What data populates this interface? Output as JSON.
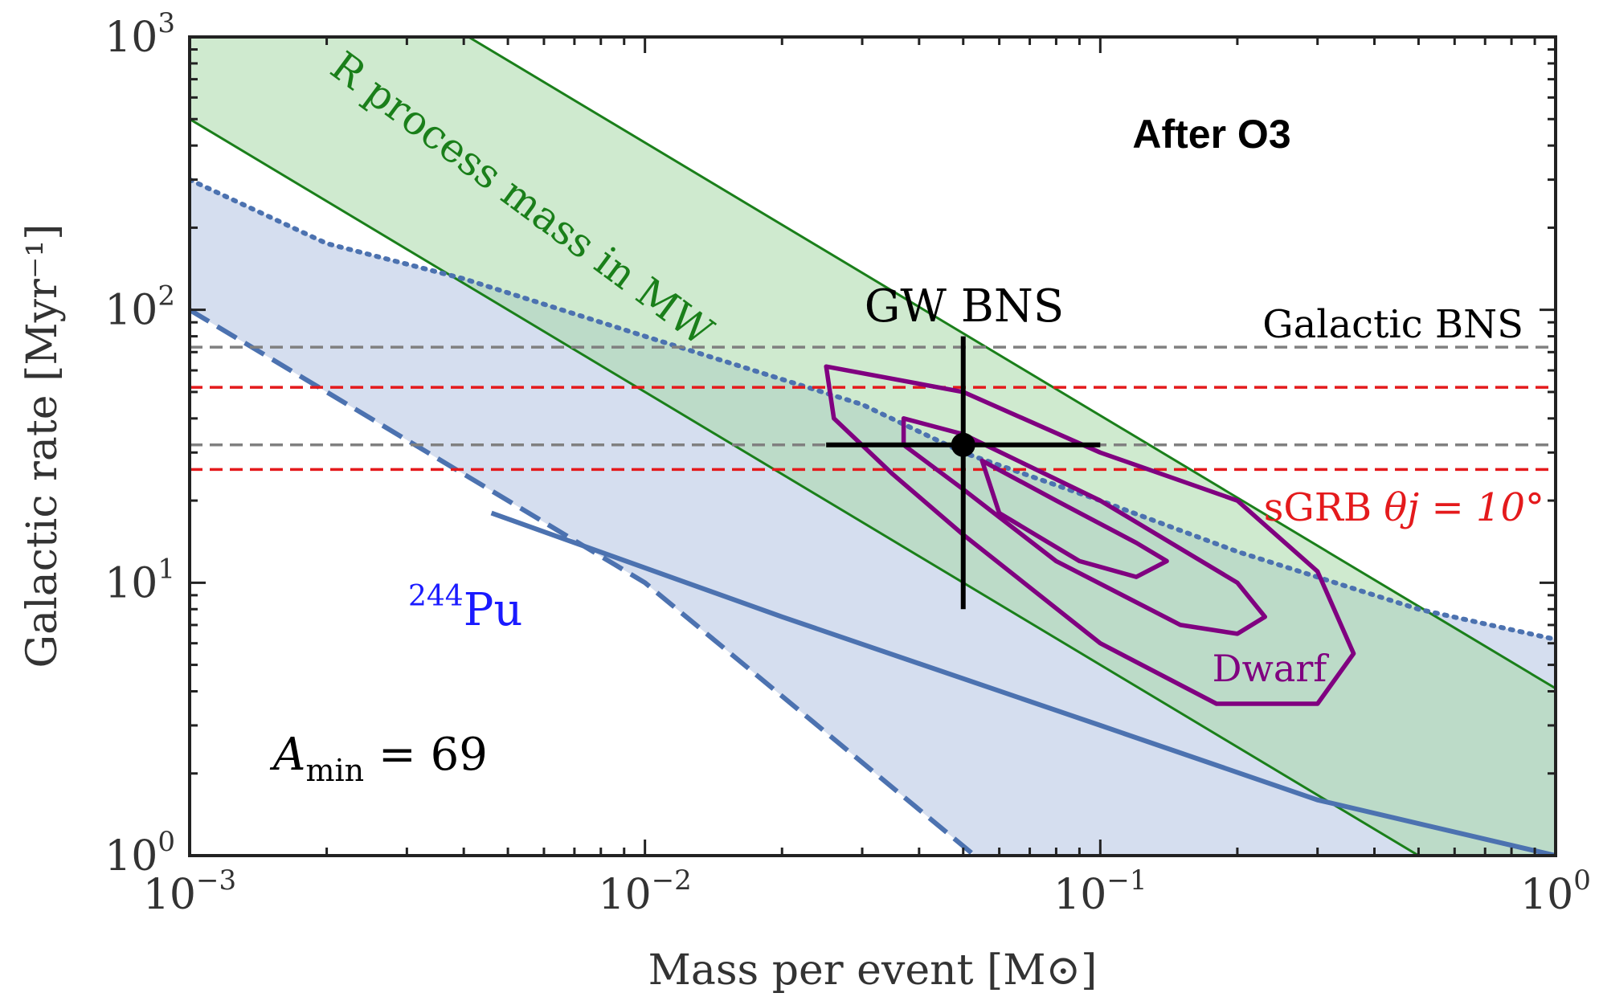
{
  "chart_data": {
    "type": "line",
    "title": "After O3",
    "xlabel": "Mass per event [M⊙]",
    "ylabel": "Galactic rate [Myr⁻¹]",
    "xscale": "log",
    "yscale": "log",
    "xlim": [
      0.001,
      1
    ],
    "ylim": [
      1,
      1000
    ],
    "x_ticks": [
      {
        "value": 0.001,
        "base": "10",
        "exp": "−3"
      },
      {
        "value": 0.01,
        "base": "10",
        "exp": "−2"
      },
      {
        "value": 0.1,
        "base": "10",
        "exp": "−1"
      },
      {
        "value": 1,
        "base": "10",
        "exp": "0"
      }
    ],
    "y_ticks": [
      {
        "value": 1,
        "base": "10",
        "exp": "0"
      },
      {
        "value": 10,
        "base": "10",
        "exp": "1"
      },
      {
        "value": 100,
        "base": "10",
        "exp": "2"
      },
      {
        "value": 1000,
        "base": "10",
        "exp": "3"
      }
    ],
    "grid": false,
    "r_process_band": {
      "label": "R process mass in MW",
      "color": "#1a7f1a",
      "fill": "#a8d8a8",
      "upper": [
        [
          0.001,
          5000
        ],
        [
          0.0041,
          1000
        ],
        [
          1,
          4.1
        ]
      ],
      "lower": [
        [
          0.001,
          500
        ],
        [
          1,
          0.5
        ]
      ]
    },
    "pu244": {
      "label_base": "Pu",
      "label_sup": "244",
      "color": "#4c72b0",
      "fill": "#c7d3ea",
      "dotted_upper": [
        [
          0.001,
          300
        ],
        [
          0.002,
          175
        ],
        [
          0.004,
          130
        ],
        [
          0.01,
          80
        ],
        [
          0.03,
          45
        ],
        [
          0.05,
          30
        ],
        [
          0.1,
          20
        ],
        [
          0.2,
          13
        ],
        [
          0.5,
          8
        ],
        [
          1,
          6.2
        ]
      ],
      "dashed_lower": [
        [
          0.001,
          100
        ],
        [
          0.01,
          10
        ],
        [
          0.053,
          1
        ]
      ],
      "solid": [
        [
          0.0046,
          18
        ],
        [
          0.02,
          7.5
        ],
        [
          0.1,
          3
        ],
        [
          0.3,
          1.6
        ],
        [
          1,
          1
        ]
      ]
    },
    "gw_bns": {
      "label": "GW BNS",
      "x": 0.05,
      "y": 32,
      "y_err": [
        8,
        80
      ],
      "x_err": [
        0.025,
        0.1
      ]
    },
    "galactic_bns": {
      "label": "Galactic BNS",
      "color": "#808080",
      "y": [
        73,
        32
      ]
    },
    "sgrb": {
      "label_text": "sGRB",
      "label_math": "θj = 10°",
      "color": "#e41a1c",
      "y": [
        52,
        26
      ]
    },
    "dwarf": {
      "label": "Dwarf",
      "color": "#800080",
      "contours": [
        [
          [
            0.025,
            62
          ],
          [
            0.05,
            50
          ],
          [
            0.1,
            30
          ],
          [
            0.2,
            20
          ],
          [
            0.3,
            11
          ],
          [
            0.36,
            5.5
          ],
          [
            0.3,
            3.6
          ],
          [
            0.18,
            3.6
          ],
          [
            0.1,
            6
          ],
          [
            0.05,
            15
          ],
          [
            0.035,
            25
          ],
          [
            0.026,
            40
          ],
          [
            0.025,
            62
          ]
        ],
        [
          [
            0.037,
            40
          ],
          [
            0.05,
            35
          ],
          [
            0.1,
            20
          ],
          [
            0.2,
            10
          ],
          [
            0.23,
            7.5
          ],
          [
            0.2,
            6.5
          ],
          [
            0.15,
            7
          ],
          [
            0.08,
            12
          ],
          [
            0.05,
            22
          ],
          [
            0.037,
            32
          ],
          [
            0.037,
            40
          ]
        ],
        [
          [
            0.055,
            28
          ],
          [
            0.08,
            20
          ],
          [
            0.12,
            14
          ],
          [
            0.14,
            12
          ],
          [
            0.12,
            10.5
          ],
          [
            0.09,
            12
          ],
          [
            0.06,
            18
          ],
          [
            0.055,
            28
          ]
        ]
      ]
    },
    "annotation": {
      "var": "A",
      "sub": "min",
      "rest": " = 69"
    }
  }
}
